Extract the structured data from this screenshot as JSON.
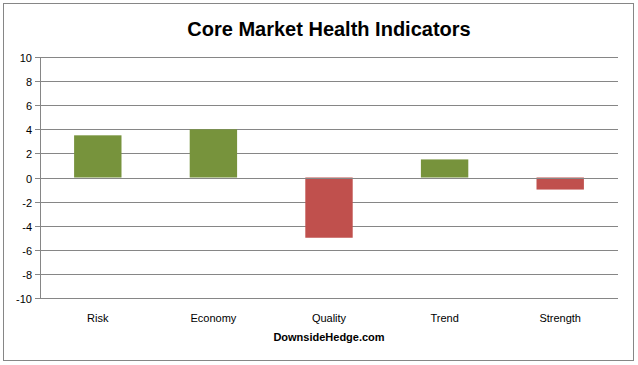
{
  "chart_data": {
    "type": "bar",
    "title": "Core Market Health Indicators",
    "x_label": "DownsideHedge.com",
    "categories": [
      "Risk",
      "Economy",
      "Quality",
      "Trend",
      "Strength"
    ],
    "values": [
      3.5,
      4,
      -5,
      1.5,
      -1
    ],
    "colors": [
      "#77933c",
      "#77933c",
      "#c0504d",
      "#77933c",
      "#c0504d"
    ],
    "ylim": [
      -10,
      10
    ],
    "yticks": [
      -10,
      -8,
      -6,
      -4,
      -2,
      0,
      2,
      4,
      6,
      8,
      10
    ],
    "grid": true
  }
}
